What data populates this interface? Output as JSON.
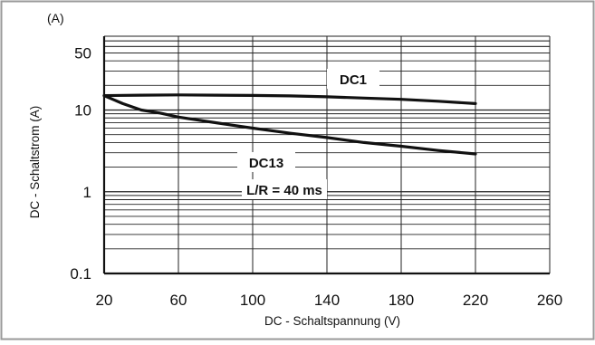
{
  "chart_data": {
    "type": "line",
    "title": "",
    "unit_label": "(A)",
    "xlabel": "DC - Schaltspannung (V)",
    "ylabel": "DC - Schaltstrom (A)",
    "x_scale": "linear",
    "y_scale": "log",
    "xlim": [
      20,
      260
    ],
    "ylim": [
      0.1,
      80
    ],
    "x_ticks": [
      20,
      60,
      100,
      140,
      180,
      220,
      260
    ],
    "x_tick_labels": [
      "20",
      "60",
      "100",
      "140",
      "180",
      "220",
      "260"
    ],
    "y_ticks": [
      0.1,
      1,
      10,
      50
    ],
    "y_tick_labels": [
      "0.1",
      "1",
      "10",
      "50"
    ],
    "grid": "horizontal log minor lines, vertical lines every 40 V",
    "annotations": {
      "dc1": "DC1",
      "dc13": "DC13",
      "lr": "L/R = 40 ms"
    },
    "series": [
      {
        "name": "DC1",
        "x": [
          20,
          40,
          60,
          80,
          100,
          120,
          140,
          160,
          180,
          200,
          220
        ],
        "y": [
          15,
          15.2,
          15.3,
          15.2,
          15.1,
          14.9,
          14.5,
          14,
          13.5,
          12.8,
          12
        ]
      },
      {
        "name": "DC13",
        "x": [
          20,
          30,
          40,
          50,
          60,
          80,
          100,
          120,
          140,
          160,
          180,
          200,
          220
        ],
        "y": [
          15,
          12,
          10,
          9.2,
          8.2,
          7,
          6,
          5.2,
          4.6,
          4,
          3.6,
          3.2,
          2.9
        ]
      }
    ],
    "colors": {
      "line": "#111111",
      "grid": "#222222",
      "frame": "#9a9a9a"
    }
  }
}
